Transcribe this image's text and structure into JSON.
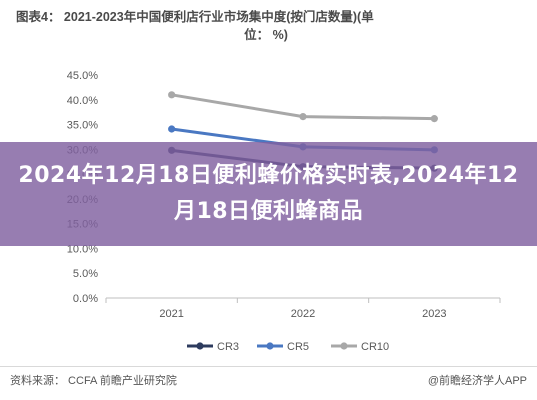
{
  "figure": {
    "title": "图表4：2021-2023年中国便利店行业市场集中度(按门店数量)(单位：%)",
    "title_line1": "图表4：  2021-2023年中国便利店行业市场集中度(按门店数量)(单",
    "title_line2": "位：  %)",
    "source_left": "资料来源：  CCFA 前瞻产业研究院",
    "source_right": "@前瞻经济学人APP"
  },
  "banner": {
    "text": "2024年12月18日便利蜂价格实时表,2024年12月18日便利蜂商品"
  },
  "colors": {
    "CR3": "#2d3b5e",
    "CR5": "#4a78c2",
    "CR10": "#a8a8a8",
    "banner": "#8060a0"
  },
  "chart_data": {
    "type": "line",
    "title": "图表4：2021-2023年中国便利店行业市场集中度(按门店数量)(单位：%)",
    "x": [
      "2021",
      "2022",
      "2023"
    ],
    "categories": [
      "2021",
      "2022",
      "2023"
    ],
    "ylim": [
      0,
      45
    ],
    "yticks": [
      "0.0%",
      "5.0%",
      "10.0%",
      "15.0%",
      "20.0%",
      "25.0%",
      "30.0%",
      "35.0%",
      "40.0%",
      "45.0%"
    ],
    "ytick_values": [
      0,
      5,
      10,
      15,
      20,
      25,
      30,
      35,
      40,
      45
    ],
    "series": [
      {
        "name": "CR3",
        "values": [
          29.8,
          26.5,
          26.2
        ]
      },
      {
        "name": "CR5",
        "values": [
          34.1,
          30.5,
          29.9
        ]
      },
      {
        "name": "CR10",
        "values": [
          41.0,
          36.6,
          36.2
        ]
      }
    ],
    "legend_position": "bottom",
    "grid": false
  }
}
